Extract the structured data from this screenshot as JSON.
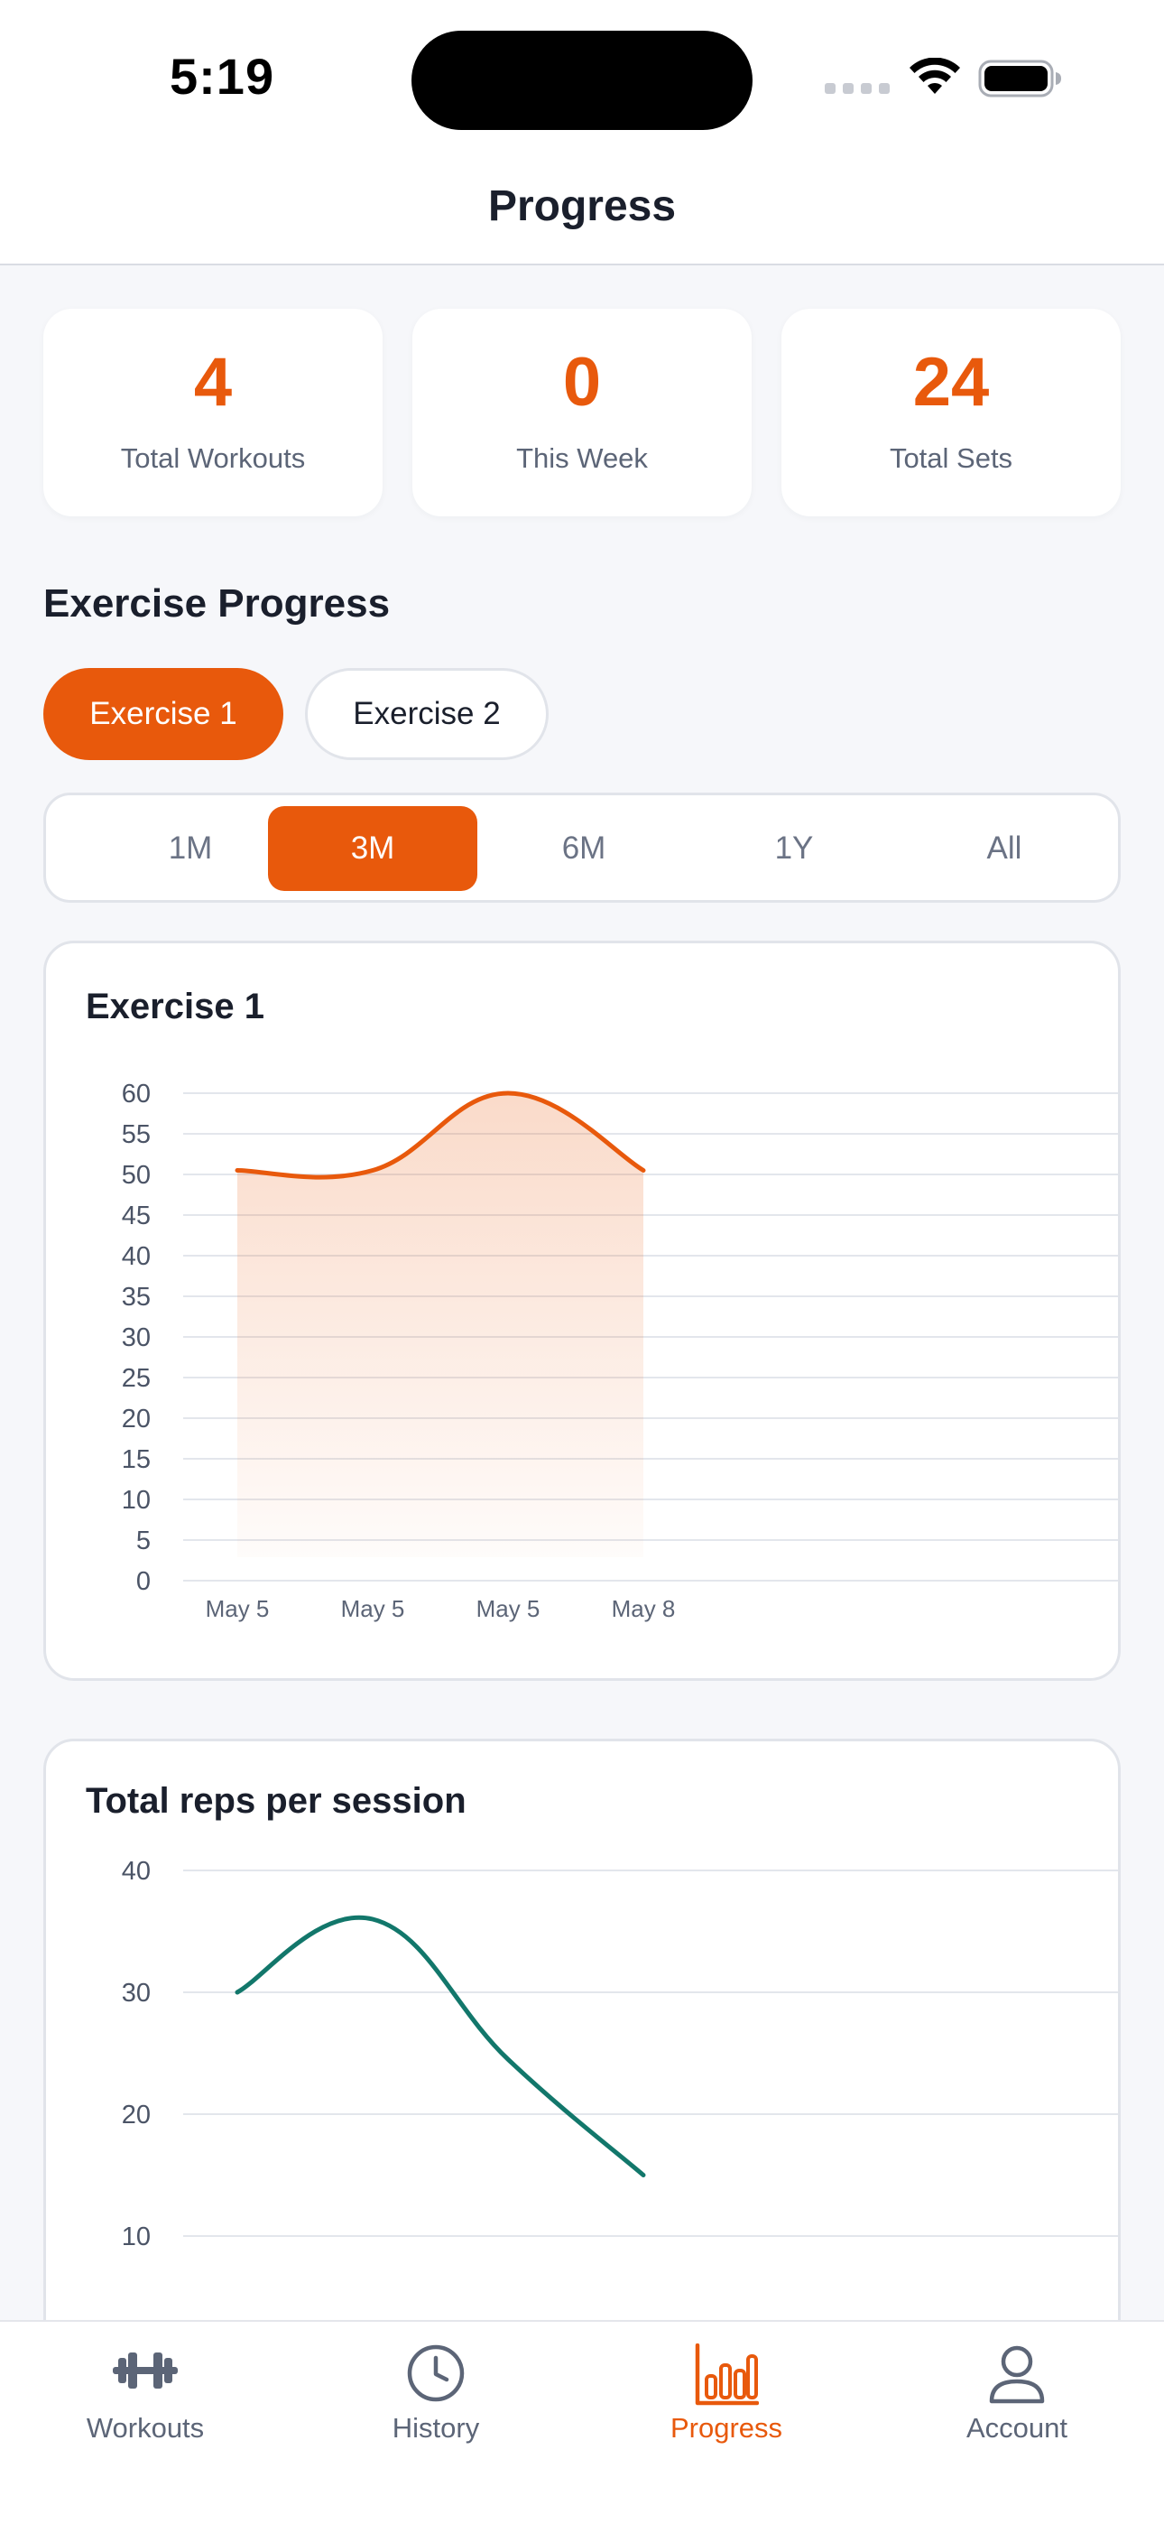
{
  "status_bar": {
    "time": "5:19"
  },
  "header": {
    "title": "Progress"
  },
  "stats": [
    {
      "value": "4",
      "label": "Total Workouts"
    },
    {
      "value": "0",
      "label": "This Week"
    },
    {
      "value": "24",
      "label": "Total Sets"
    }
  ],
  "section": {
    "title": "Exercise Progress"
  },
  "exercise_chips": [
    {
      "label": "Exercise 1",
      "active": true
    },
    {
      "label": "Exercise 2",
      "active": false
    }
  ],
  "range_options": [
    "1M",
    "3M",
    "6M",
    "1Y",
    "All"
  ],
  "range_selected": "3M",
  "colors": {
    "accent": "#e8590c",
    "teal": "#12776b",
    "grid": "#e3e6ec"
  },
  "chart_data": [
    {
      "type": "area",
      "title": "Exercise 1",
      "categories": [
        "May 5",
        "May 5",
        "May 5",
        "May 8"
      ],
      "values": [
        50.5,
        50.5,
        60,
        50.5
      ],
      "yticks": [
        60,
        55,
        50,
        45,
        40,
        35,
        30,
        25,
        20,
        15,
        10,
        5,
        0
      ],
      "ylim": [
        0,
        60
      ],
      "grid": true,
      "color": "#e8590c"
    },
    {
      "type": "line",
      "title": "Total reps per session",
      "categories": [
        "",
        "",
        "",
        ""
      ],
      "values": [
        30,
        36,
        24.5,
        15
      ],
      "yticks": [
        40,
        30,
        20,
        10
      ],
      "ylim": [
        0,
        40
      ],
      "grid": true,
      "color": "#12776b"
    }
  ],
  "tabs": [
    {
      "label": "Workouts",
      "icon": "dumbbell-icon",
      "active": false
    },
    {
      "label": "History",
      "icon": "clock-icon",
      "active": false
    },
    {
      "label": "Progress",
      "icon": "bar-chart-icon",
      "active": true
    },
    {
      "label": "Account",
      "icon": "user-icon",
      "active": false
    }
  ]
}
